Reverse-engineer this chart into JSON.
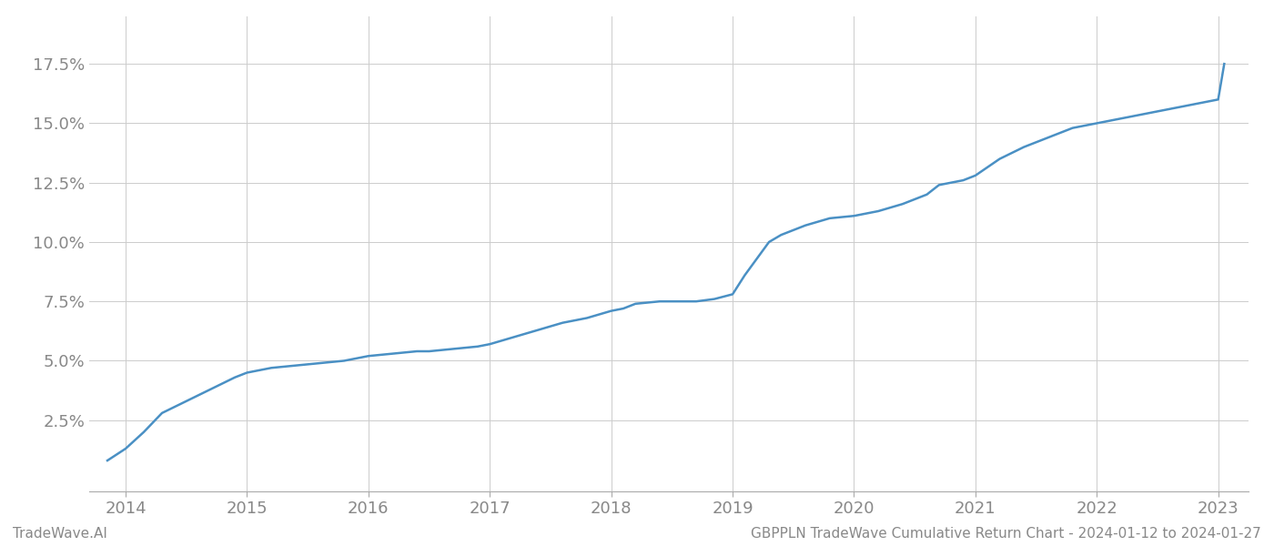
{
  "title": "GBPPLN TradeWave Cumulative Return Chart - 2024-01-12 to 2024-01-27",
  "watermark": "TradeWave.AI",
  "line_color": "#4a90c4",
  "background_color": "#ffffff",
  "grid_color": "#cccccc",
  "x_years": [
    2014,
    2015,
    2016,
    2017,
    2018,
    2019,
    2020,
    2021,
    2022,
    2023
  ],
  "x_data": [
    2013.85,
    2014.0,
    2014.15,
    2014.3,
    2014.5,
    2014.7,
    2014.9,
    2015.0,
    2015.2,
    2015.4,
    2015.6,
    2015.8,
    2016.0,
    2016.2,
    2016.4,
    2016.5,
    2016.7,
    2016.9,
    2017.0,
    2017.2,
    2017.4,
    2017.6,
    2017.8,
    2018.0,
    2018.1,
    2018.2,
    2018.4,
    2018.5,
    2018.6,
    2018.7,
    2018.85,
    2019.0,
    2019.1,
    2019.2,
    2019.3,
    2019.4,
    2019.6,
    2019.8,
    2020.0,
    2020.2,
    2020.4,
    2020.6,
    2020.7,
    2020.9,
    2021.0,
    2021.2,
    2021.4,
    2021.6,
    2021.8,
    2022.0,
    2022.2,
    2022.4,
    2022.6,
    2022.8,
    2023.0,
    2023.05
  ],
  "y_data": [
    0.008,
    0.013,
    0.02,
    0.028,
    0.033,
    0.038,
    0.043,
    0.045,
    0.047,
    0.048,
    0.049,
    0.05,
    0.052,
    0.053,
    0.054,
    0.054,
    0.055,
    0.056,
    0.057,
    0.06,
    0.063,
    0.066,
    0.068,
    0.071,
    0.072,
    0.074,
    0.075,
    0.075,
    0.075,
    0.075,
    0.076,
    0.078,
    0.086,
    0.093,
    0.1,
    0.103,
    0.107,
    0.11,
    0.111,
    0.113,
    0.116,
    0.12,
    0.124,
    0.126,
    0.128,
    0.135,
    0.14,
    0.144,
    0.148,
    0.15,
    0.152,
    0.154,
    0.156,
    0.158,
    0.16,
    0.175
  ],
  "yticks": [
    0.025,
    0.05,
    0.075,
    0.1,
    0.125,
    0.15,
    0.175
  ],
  "ylim": [
    -0.005,
    0.195
  ],
  "xlim": [
    2013.7,
    2023.25
  ],
  "title_fontsize": 11,
  "tick_fontsize": 13,
  "label_color": "#888888"
}
